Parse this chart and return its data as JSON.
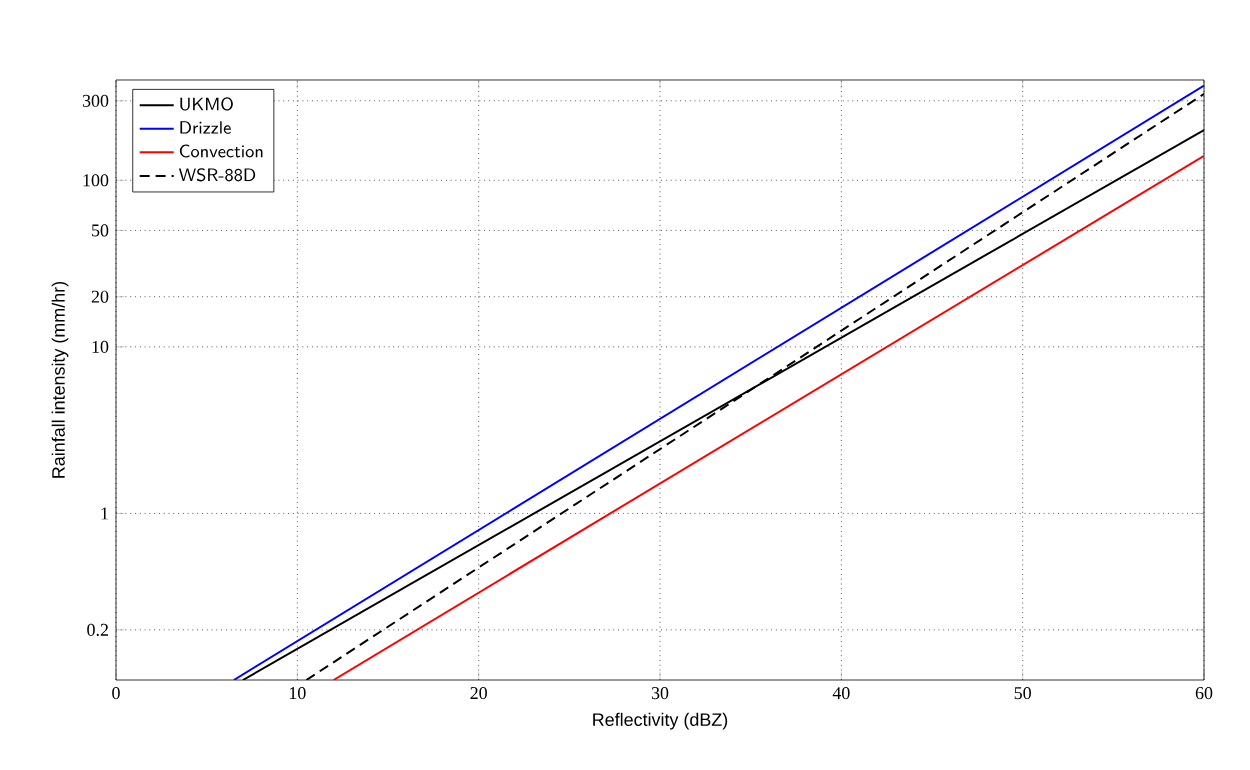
{
  "chart_data": {
    "type": "line",
    "xlabel": "Reflectivity (dBZ)",
    "ylabel": "Rainfall intensity (mm/hr)",
    "xlim": [
      0,
      60
    ],
    "xticks": [
      0,
      10,
      20,
      30,
      40,
      50,
      60
    ],
    "ylim": [
      0.1,
      400
    ],
    "yticks": [
      0.2,
      1,
      10,
      20,
      50,
      100,
      300
    ],
    "log": "y",
    "grid": true,
    "legend": "top left",
    "series": [
      {
        "name": "UKMO",
        "color": "#000000",
        "x": [
          7,
          60
        ],
        "values": [
          0.1,
          200
        ],
        "line_style": "solid"
      },
      {
        "name": "Drizzle",
        "color": "#0000ff",
        "x": [
          6.5,
          60
        ],
        "values": [
          0.1,
          370
        ],
        "line_style": "solid"
      },
      {
        "name": "Convection",
        "color": "#ff0000",
        "x": [
          12,
          60
        ],
        "values": [
          0.1,
          140
        ],
        "line_style": "solid"
      },
      {
        "name": "WSR-88D",
        "color": "#000000",
        "x": [
          10.5,
          60
        ],
        "values": [
          0.1,
          330
        ],
        "line_style": "dashed"
      }
    ]
  }
}
